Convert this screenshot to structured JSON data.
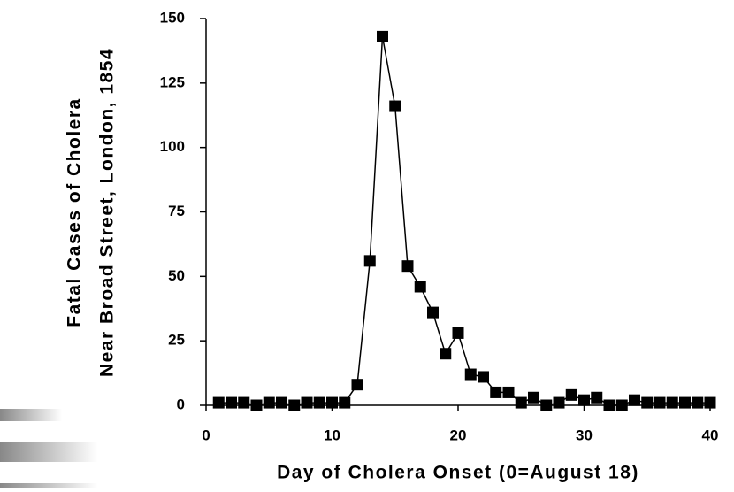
{
  "chart_data": {
    "type": "line",
    "ylabel": [
      "Fatal Cases of Cholera",
      "Near Broad Street, London, 1854"
    ],
    "xlabel": "Day of Cholera Onset (0=August 18)",
    "x": [
      1,
      2,
      3,
      4,
      5,
      6,
      7,
      8,
      9,
      10,
      11,
      12,
      13,
      14,
      15,
      16,
      17,
      18,
      19,
      20,
      21,
      22,
      23,
      24,
      25,
      26,
      27,
      28,
      29,
      30,
      31,
      32,
      33,
      34,
      35,
      36,
      37,
      38,
      39,
      40
    ],
    "series": [
      {
        "color": "#000000",
        "values": [
          1,
          1,
          1,
          0,
          1,
          1,
          0,
          1,
          1,
          1,
          1,
          8,
          56,
          143,
          116,
          54,
          46,
          36,
          20,
          28,
          12,
          11,
          5,
          5,
          1,
          3,
          0,
          1,
          4,
          2,
          3,
          0,
          0,
          2,
          1,
          1,
          1,
          1,
          1,
          1
        ]
      }
    ],
    "xlim": [
      0,
      40
    ],
    "xticks": [
      0,
      10,
      20,
      30,
      40
    ],
    "ylim": [
      0,
      150
    ],
    "yticks": [
      0,
      25,
      50,
      75,
      100,
      125,
      150
    ]
  }
}
